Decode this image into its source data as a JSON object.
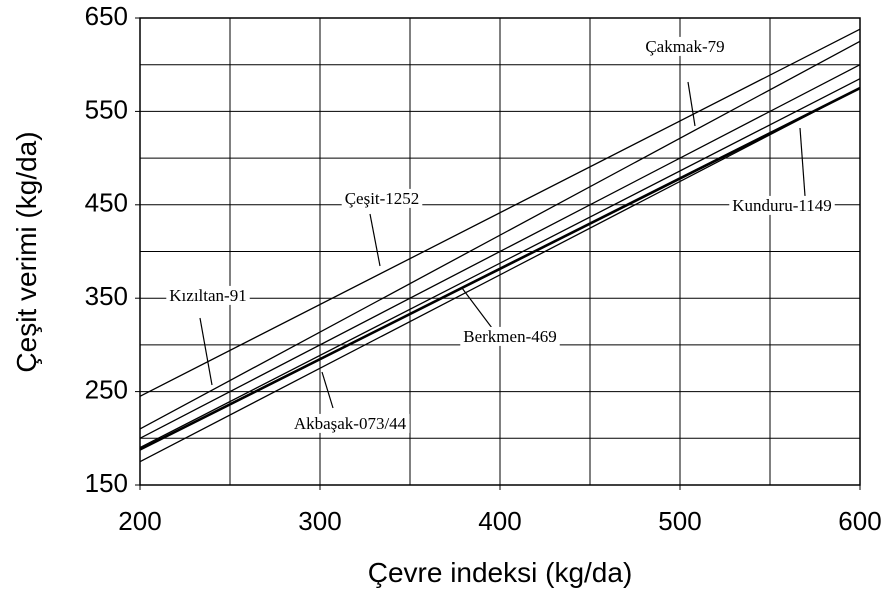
{
  "chart_data": {
    "type": "line",
    "x_label": "Çevre indeksi (kg/da)",
    "y_label": "Çeşit verimi (kg/da)",
    "x": [
      200,
      600
    ],
    "series": [
      {
        "name": "Çeşit-1252",
        "color": "#000000",
        "values": [
          245,
          638
        ]
      },
      {
        "name": "Çakmak-79",
        "color": "#000000",
        "values": [
          210,
          625
        ]
      },
      {
        "name": "Kızıltan-91",
        "color": "#000000",
        "values": [
          200,
          600
        ]
      },
      {
        "name": "Berkmen-469",
        "color": "#000000",
        "values": [
          190,
          585
        ]
      },
      {
        "name": "Kunduru-1149",
        "color": "#000000",
        "values": [
          188,
          575
        ]
      },
      {
        "name": "Akbaşak-073/44",
        "color": "#000000",
        "values": [
          175,
          575
        ]
      }
    ],
    "xlim": [
      200,
      600
    ],
    "ylim": [
      150,
      650
    ],
    "xticks": [
      200,
      300,
      400,
      500,
      600
    ],
    "yticks": [
      150,
      250,
      350,
      450,
      550,
      650
    ],
    "xgrid": [
      250,
      300,
      350,
      400,
      450,
      500,
      550
    ],
    "ygrid": [
      200,
      250,
      300,
      350,
      400,
      450,
      500,
      550,
      600
    ],
    "grid": true
  }
}
